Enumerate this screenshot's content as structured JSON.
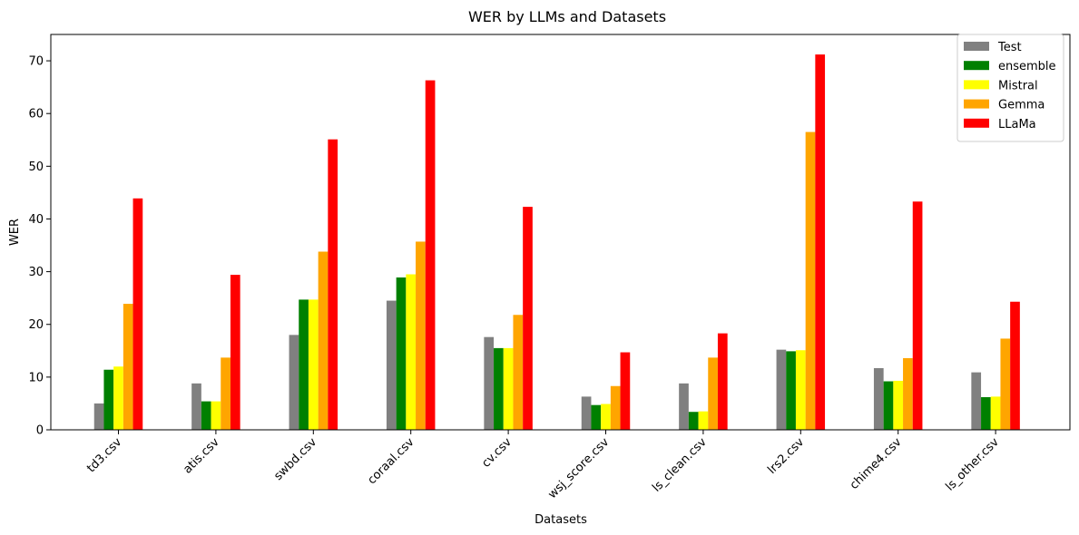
{
  "chart_data": {
    "type": "bar",
    "title": "WER by LLMs and Datasets",
    "xlabel": "Datasets",
    "ylabel": "WER",
    "ylim": [
      0,
      75
    ],
    "yticks": [
      0,
      10,
      20,
      30,
      40,
      50,
      60,
      70
    ],
    "grid": false,
    "legend_position": "top-right",
    "categories": [
      "td3.csv",
      "atis.csv",
      "swbd.csv",
      "coraal.csv",
      "cv.csv",
      "wsj_score.csv",
      "ls_clean.csv",
      "lrs2.csv",
      "chime4.csv",
      "ls_other.csv"
    ],
    "series": [
      {
        "name": "Test",
        "color": "#808080",
        "values": [
          5.0,
          8.8,
          18.0,
          24.5,
          17.6,
          6.3,
          8.8,
          15.2,
          11.7,
          10.9
        ]
      },
      {
        "name": "ensemble",
        "color": "#008000",
        "values": [
          11.4,
          5.4,
          24.7,
          28.9,
          15.5,
          4.7,
          3.4,
          14.9,
          9.2,
          6.2
        ]
      },
      {
        "name": "Mistral",
        "color": "#ffff00",
        "values": [
          12.0,
          5.4,
          24.7,
          29.5,
          15.5,
          4.9,
          3.5,
          15.1,
          9.3,
          6.3
        ]
      },
      {
        "name": "Gemma",
        "color": "#ffa500",
        "values": [
          23.9,
          13.7,
          33.8,
          35.7,
          21.8,
          8.3,
          13.7,
          56.5,
          13.6,
          17.3
        ]
      },
      {
        "name": "LLaMa",
        "color": "#ff0000",
        "values": [
          43.9,
          29.4,
          55.1,
          66.3,
          42.3,
          14.7,
          18.3,
          71.2,
          43.3,
          24.3
        ]
      }
    ]
  }
}
